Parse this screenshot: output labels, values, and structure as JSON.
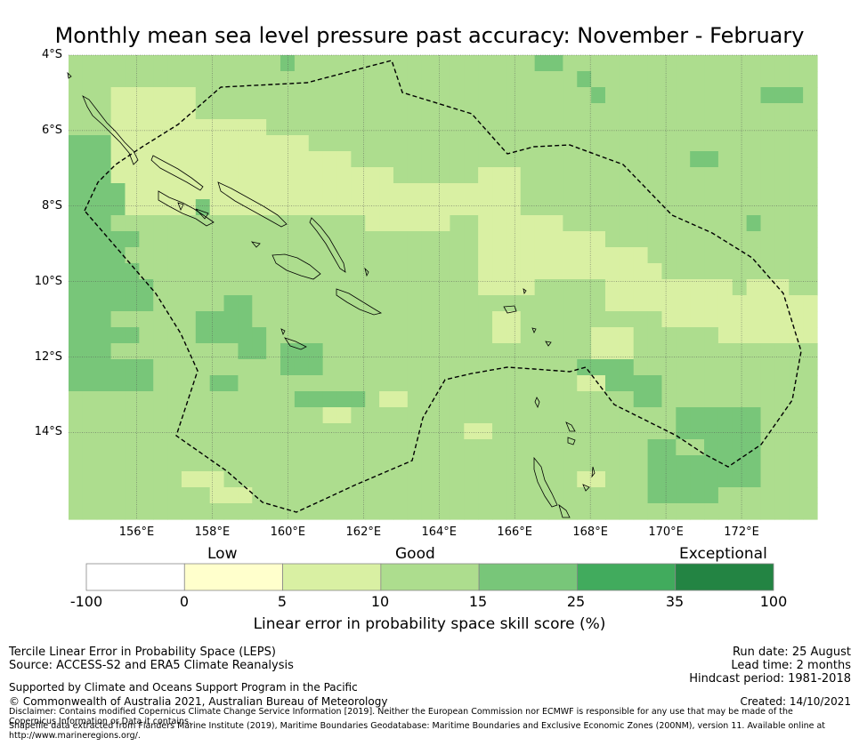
{
  "title": "Monthly mean sea level pressure past accuracy: November - February",
  "map": {
    "lat_labels": [
      "4°S",
      "6°S",
      "8°S",
      "10°S",
      "12°S",
      "14°S"
    ],
    "lon_labels": [
      "156°E",
      "158°E",
      "160°E",
      "162°E",
      "164°E",
      "166°E",
      "168°E",
      "170°E",
      "172°E"
    ],
    "lat_values": [
      -4,
      -6,
      -8,
      -10,
      -12,
      -14
    ],
    "lon_values": [
      156,
      158,
      160,
      162,
      164,
      166,
      168,
      170,
      172
    ],
    "extent": {
      "lon_min": 154.2,
      "lon_max": 174.0,
      "lat_max": -4.0,
      "lat_min": -16.3
    }
  },
  "colorbar": {
    "categories": [
      "Low",
      "Good",
      "Exceptional"
    ],
    "ticks": [
      "-100",
      "0",
      "5",
      "10",
      "15",
      "25",
      "35",
      "100"
    ],
    "colors": [
      "#ffffff",
      "#ffffcc",
      "#d9f0a3",
      "#addd8e",
      "#78c679",
      "#41ab5d",
      "#238443"
    ],
    "label": "Linear error in probability space skill score (%)"
  },
  "info": {
    "method": "Tercile Linear Error in Probability Space (LEPS)",
    "source": "Source: ACCESS-S2 and ERA5 Climate Reanalysis",
    "run_date": "Run date: 25 August",
    "lead_time": "Lead time: 2 months",
    "hindcast": "Hindcast period: 1981-2018",
    "support": "Supported by Climate and Oceans Support Program in the Pacific",
    "copyright": "© Commonwealth of Australia 2021, Australian Bureau of Meteorology",
    "created": "Created: 14/10/2021",
    "disclaimer1": "Disclaimer: Contains modified Copernicus Climate Change Service Information [2019]. Neither the European Commission nor ECMWF is responsible for any use that may be made of the Copernicus Information or Data it contains.",
    "disclaimer2": "Shapefile data extracted from Flanders Marine Institute (2019), Maritime Boundaries Geodatabase: Maritime Boundaries and Exclusive Economic Zones (200NM), version 11. Available online at http://www.marineregions.org/."
  },
  "grid_rows": [
    "bbbbbbbbbbbbbbbbbbbbbbbbbbbbbbbbbbbbbbbbbbbbbbbbbbbbb",
    "bbbbbbbbbbbbbbbbbbbbbbbbbbbbbbbbbbbbbbbbbbbbbbbbbbbbb",
    "bbbaaaaaabbbbbbbbbbbbbbbbbbbbbbbbbbbbbbbbbbbbbbbbbbbb",
    "bbbaaaaaabbbbbbbbbbbbbbbbbbbbbbbbbbbbbbbbbbbbbbbbbbbb",
    "bbbaaaaaaaaaaabbbbbbbbbbbbbbbbbbbbbbbbbbbbbbbbbbbbbbb",
    "cccaaaaaaaaaaaaaabbbbbbbbbbbbbbbbbbbbbbbbbbbbbbbbbbbb",
    "cccaaaaaaaaaaaaaaaaabbbbbbbbbbbbbbbbbbbbbbbbbbbbbbbbb",
    "cccaaaaaaaaaaaaaaaaaaaabbbbbbaaabbbbbbbbbbbbbbbbbbbbb",
    "cccaaaaaaaaaaaaaaaaaaaaaaaaaaaaabbbbbbbbbbbbbbbbbbbbb",
    "cccaaaaaaaaaaaaaaaaaaaaaaaaaaaaabbbbbbbbbbbbbbbbbbbbb",
    "cccbbbbbbbbbbbbbbbbbbaaaaaabbaaaaaabbbbbbbbbbbbbbbbbb",
    "cccbbbbbbbbbbbbbbbbbbbbbbbbbbaaaaaaaaabbbbbbbbbbbbbbb",
    "cccbbbbbbbbbbbbbbbbbbbbbbbbbbaaaaaaaaaaaabbbbbbbbbbbb",
    "cccbbbbbbbbbbbbbbbbbbbbbbbbbbaaaaaaaaaaaaabbbbbbbbbbb",
    "cccbbbbbbbbbbbbbbbbbbbbbbbbbbaaaabbbbbaaaaaaaaabbbbbb",
    "cccbbbbbbbbbbbbbbbbbbbbbbbbbbbbbbbbbbbaaaaaaaaaaaaaaa",
    "cccbbbbbbbbbbbbbbbbbbbbbbbbbbbbbbbbbbbbbbbaaaaaaaaaaa",
    "cccbbbbbbbbbbbbbbbbbbbbbbbbbbbbbbbbbbbbbbbbbbbaaaaaaa",
    "cccbbbbbbbbbbbbbbbbbbbbbbbbbbbbbbbbbbbbbbbbbbbbbbbbbb",
    "bbbbbbbbbbbbbbbbbbbbbbbbbbbbbbbbbbbbbbbbbbbbbbbbbbbbb",
    "bbbbbbbbbbbbbbbbbbbbbbbbbbbbbbbbbbbbbbbbbbbbbbbbbbbbb",
    "bbbbbbbbbbbbbbbbbbbbbbbbbbbbbbbbbbbbbbbbbbbbbbbbbbbbb",
    "bbbbbbbbbbbbbbbbbbbbbbbbbbbbbbbbbbbbbbbbbbbbbbbbbbbbb",
    "bbbbbbbbbbbbbbbbbbbbbbbbbbbbbbbbbbbbbbbbbbbbbbbbbbbbb",
    "bbbbbbbbbbbbbbbbbbbbbbbbbbbbbbbbbbbbbbbbbbbbbbbbbbbbb",
    "bbbbbbbbbbbbbbbbbbbbbbbbbbbbbbbbbbbbbbbbbbbbbbbbbbbbb",
    "bbbbbbbbbbbbbbbbbbbbbbbbbbbbbbbbbbbbbbbbbbbbbbbbbbbbb",
    "bbbbbbbbbbbbbbbbbbbbbbbbbbbbbbbbbbbbbbbbbbbbbbbbbbbbb",
    "bbbbbbbbbbbbbbbbbbbbbbbbbbbbbbbbbbbbbbbbbbbbbbbbbbbbb"
  ],
  "grid_patches": [
    {
      "r": 0,
      "c": 33,
      "w": 2,
      "h": 1,
      "v": "c"
    },
    {
      "r": 0,
      "c": 15,
      "w": 1,
      "h": 1,
      "v": "c"
    },
    {
      "r": 1,
      "c": 36,
      "w": 1,
      "h": 1,
      "v": "c"
    },
    {
      "r": 2,
      "c": 37,
      "w": 1,
      "h": 1,
      "v": "c"
    },
    {
      "r": 2,
      "c": 49,
      "w": 3,
      "h": 1,
      "v": "c"
    },
    {
      "r": 5,
      "c": 54,
      "w": 1,
      "h": 1,
      "v": "c"
    },
    {
      "r": 6,
      "c": 44,
      "w": 2,
      "h": 1,
      "v": "c"
    },
    {
      "r": 8,
      "c": 0,
      "w": 4,
      "h": 2,
      "v": "c"
    },
    {
      "r": 9,
      "c": 9,
      "w": 1,
      "h": 1,
      "v": "c"
    },
    {
      "r": 10,
      "c": 48,
      "w": 1,
      "h": 1,
      "v": "c"
    },
    {
      "r": 11,
      "c": 0,
      "w": 5,
      "h": 1,
      "v": "c"
    },
    {
      "r": 12,
      "c": 0,
      "w": 4,
      "h": 2,
      "v": "c"
    },
    {
      "r": 13,
      "c": 2,
      "w": 3,
      "h": 1,
      "v": "c"
    },
    {
      "r": 14,
      "c": 0,
      "w": 6,
      "h": 2,
      "v": "c"
    },
    {
      "r": 15,
      "c": 11,
      "w": 2,
      "h": 2,
      "v": "c"
    },
    {
      "r": 16,
      "c": 9,
      "w": 2,
      "h": 1,
      "v": "c"
    },
    {
      "r": 17,
      "c": 2,
      "w": 3,
      "h": 1,
      "v": "c"
    },
    {
      "r": 17,
      "c": 12,
      "w": 2,
      "h": 2,
      "v": "c"
    },
    {
      "r": 17,
      "c": 9,
      "w": 3,
      "h": 1,
      "v": "c"
    },
    {
      "r": 18,
      "c": 15,
      "w": 3,
      "h": 2,
      "v": "c"
    },
    {
      "r": 19,
      "c": 0,
      "w": 6,
      "h": 2,
      "v": "c"
    },
    {
      "r": 20,
      "c": 10,
      "w": 2,
      "h": 1,
      "v": "c"
    },
    {
      "r": 21,
      "c": 16,
      "w": 5,
      "h": 1,
      "v": "c"
    },
    {
      "r": 19,
      "c": 36,
      "w": 4,
      "h": 2,
      "v": "c"
    },
    {
      "r": 20,
      "c": 40,
      "w": 2,
      "h": 2,
      "v": "c"
    },
    {
      "r": 22,
      "c": 43,
      "w": 6,
      "h": 2,
      "v": "c"
    },
    {
      "r": 23,
      "c": 45,
      "w": 4,
      "h": 4,
      "v": "c"
    },
    {
      "r": 25,
      "c": 43,
      "w": 3,
      "h": 3,
      "v": "c"
    },
    {
      "r": 24,
      "c": 41,
      "w": 2,
      "h": 4,
      "v": "c"
    },
    {
      "r": 22,
      "c": 45,
      "w": 2,
      "h": 1,
      "v": "c"
    },
    {
      "r": 16,
      "c": 30,
      "w": 2,
      "h": 2,
      "v": "a"
    },
    {
      "r": 14,
      "c": 48,
      "w": 3,
      "h": 1,
      "v": "a"
    },
    {
      "r": 15,
      "c": 45,
      "w": 6,
      "h": 1,
      "v": "a"
    },
    {
      "r": 16,
      "c": 50,
      "w": 3,
      "h": 1,
      "v": "a"
    },
    {
      "r": 17,
      "c": 37,
      "w": 3,
      "h": 2,
      "v": "a"
    },
    {
      "r": 18,
      "c": 38,
      "w": 2,
      "h": 1,
      "v": "a"
    },
    {
      "r": 20,
      "c": 36,
      "w": 2,
      "h": 1,
      "v": "a"
    },
    {
      "r": 21,
      "c": 22,
      "w": 2,
      "h": 1,
      "v": "a"
    },
    {
      "r": 22,
      "c": 18,
      "w": 2,
      "h": 1,
      "v": "a"
    },
    {
      "r": 23,
      "c": 28,
      "w": 2,
      "h": 1,
      "v": "a"
    },
    {
      "r": 26,
      "c": 8,
      "w": 3,
      "h": 1,
      "v": "a"
    },
    {
      "r": 27,
      "c": 10,
      "w": 3,
      "h": 1,
      "v": "a"
    },
    {
      "r": 26,
      "c": 36,
      "w": 2,
      "h": 1,
      "v": "a"
    },
    {
      "r": 20,
      "c": 52,
      "w": 1,
      "h": 2,
      "v": "b"
    },
    {
      "r": 17,
      "c": 52,
      "w": 1,
      "h": 1,
      "v": "a"
    }
  ]
}
